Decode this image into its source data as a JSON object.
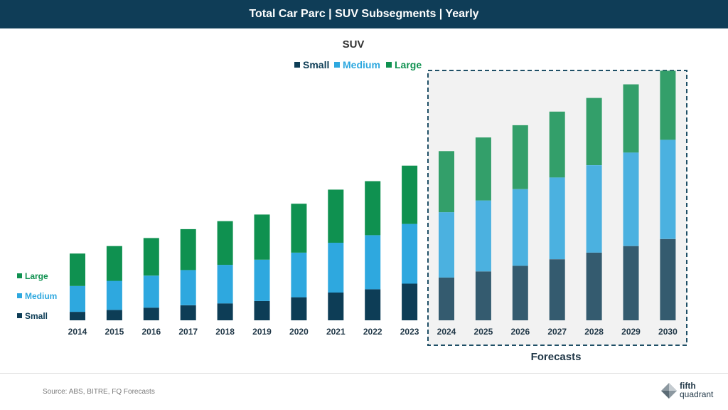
{
  "header": {
    "title": "Total Car Parc | SUV Subsegments | Yearly"
  },
  "footer": {
    "source": "Source: ABS, BITRE, FQ Forecasts"
  },
  "logo": {
    "line1": "fifth",
    "line2": "quadrant"
  },
  "colors": {
    "header_bg": "#0f3d57",
    "small": "#0d3d56",
    "medium": "#2ea8df",
    "large": "#0f9150",
    "small_forecast": "#345b6f",
    "medium_forecast": "#4bb1e0",
    "large_forecast": "#339f6a",
    "forecast_bg": "#f2f2f2",
    "forecast_border": "#1f4f66"
  },
  "chart_data": {
    "type": "bar",
    "stacked": true,
    "title": "SUV",
    "xlabel": "",
    "ylabel": "",
    "ylim": [
      0,
      5.3
    ],
    "y_axis_visible": false,
    "grid": false,
    "legend_top": [
      "Small",
      "Medium",
      "Large"
    ],
    "legend_side": [
      "Large",
      "Medium",
      "Small"
    ],
    "categories": [
      "2014",
      "2015",
      "2016",
      "2017",
      "2018",
      "2019",
      "2020",
      "2021",
      "2022",
      "2023",
      "2024",
      "2025",
      "2026",
      "2027",
      "2028",
      "2029",
      "2030"
    ],
    "series": [
      {
        "name": "Small",
        "values": [
          0.18,
          0.22,
          0.27,
          0.32,
          0.36,
          0.41,
          0.49,
          0.59,
          0.66,
          0.78,
          0.91,
          1.04,
          1.16,
          1.3,
          1.44,
          1.58,
          1.73
        ]
      },
      {
        "name": "Medium",
        "values": [
          0.55,
          0.62,
          0.68,
          0.75,
          0.82,
          0.88,
          0.95,
          1.06,
          1.15,
          1.27,
          1.39,
          1.51,
          1.63,
          1.74,
          1.86,
          1.99,
          2.11
        ]
      },
      {
        "name": "Large",
        "values": [
          0.69,
          0.74,
          0.8,
          0.87,
          0.93,
          0.96,
          1.04,
          1.13,
          1.15,
          1.24,
          1.3,
          1.34,
          1.36,
          1.4,
          1.43,
          1.45,
          1.47
        ]
      }
    ],
    "forecast": {
      "label": "Forecasts",
      "from": "2024",
      "to": "2030"
    }
  }
}
